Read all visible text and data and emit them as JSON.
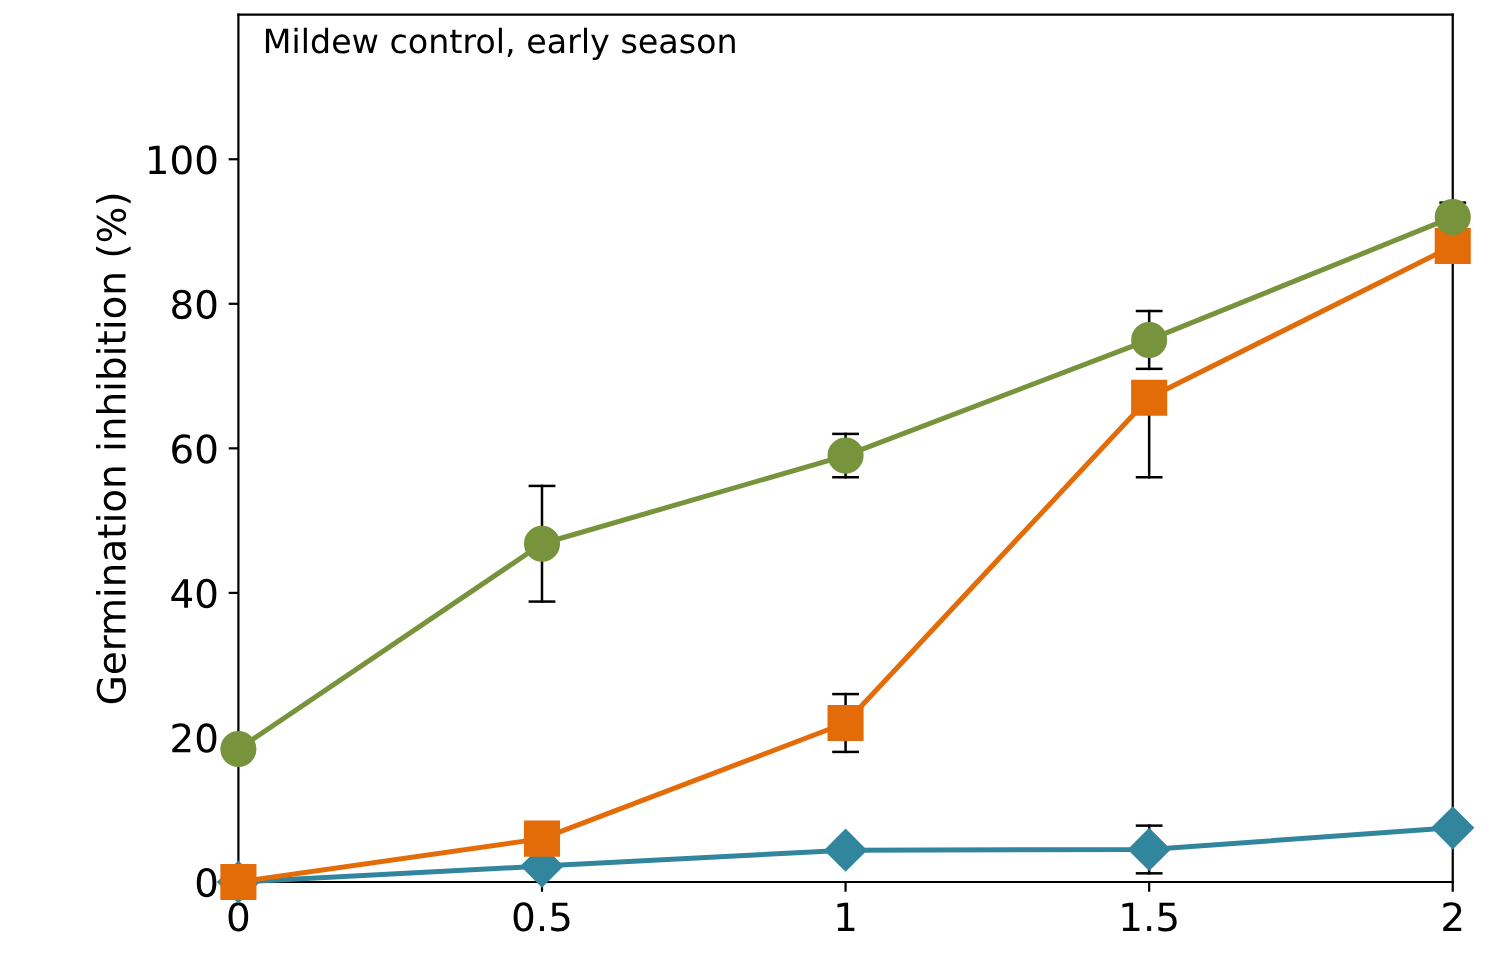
{
  "chart_data": {
    "type": "line",
    "title": "Mildew control, early season",
    "ylabel": "Germination inhibition (%)",
    "x": [
      0,
      0.5,
      1,
      1.5,
      2
    ],
    "series": [
      {
        "color": "#31859c",
        "marker": "diamond",
        "values": [
          0,
          2.2,
          4.4,
          4.5,
          7.5
        ],
        "errors": [
          null,
          null,
          null,
          3.3,
          null
        ]
      },
      {
        "color": "#e36c09",
        "marker": "square",
        "values": [
          0,
          6,
          22,
          67,
          88
        ],
        "errors": [
          null,
          null,
          4,
          [
            56,
            67
          ],
          null
        ]
      },
      {
        "color": "#77933c",
        "marker": "circle",
        "values": [
          18.4,
          46.8,
          59,
          75,
          92
        ],
        "errors": [
          null,
          8,
          3,
          4,
          2
        ]
      }
    ],
    "xlim": [
      0,
      2
    ],
    "xticks": [
      0,
      0.5,
      1,
      1.5,
      2
    ],
    "ylim": [
      0,
      120
    ],
    "yticks": [
      0,
      20,
      40,
      60,
      80,
      100
    ],
    "grid": false,
    "legend": false
  }
}
